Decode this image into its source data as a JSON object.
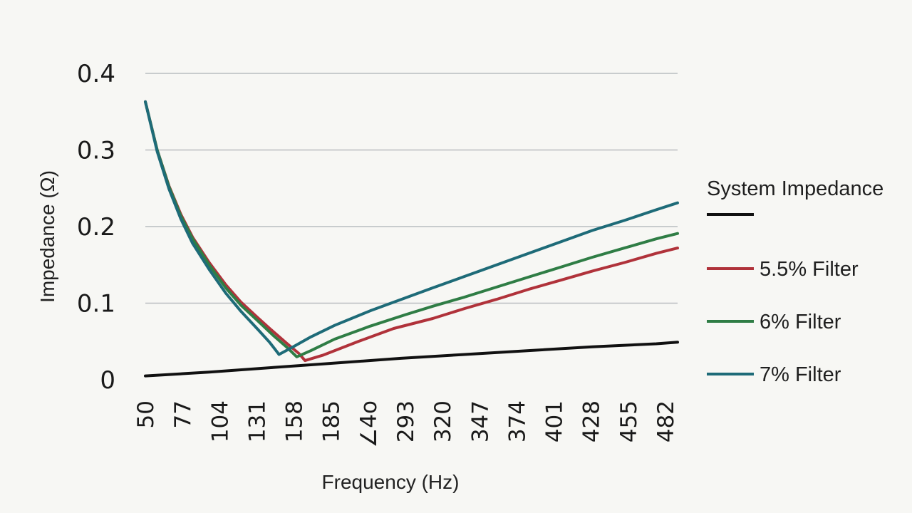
{
  "chart_data": {
    "type": "line",
    "xlabel": "Frequency (Hz)",
    "ylabel": "Impedance  (Ω)",
    "ylim": [
      0,
      0.4
    ],
    "yticks": [
      "0",
      "0.1",
      "0.2",
      "0.3",
      "0.4"
    ],
    "ytick_values": [
      0,
      0.1,
      0.2,
      0.3,
      0.4
    ],
    "xtick_labels": [
      "50",
      "77",
      "104",
      "131",
      "158",
      "185",
      "∠4o",
      "293",
      "320",
      "347",
      "374",
      "401",
      "428",
      "455",
      "482"
    ],
    "grid": true,
    "legend_position": "right",
    "series": [
      {
        "name": "System Impedance",
        "color": "#111111",
        "x": [
          50,
          104,
          158,
          212,
          266,
          320,
          374,
          428,
          482,
          500
        ],
        "y": [
          0.005,
          0.01,
          0.016,
          0.022,
          0.028,
          0.033,
          0.038,
          0.043,
          0.047,
          0.049
        ]
      },
      {
        "name": "5.5% Filter",
        "color": "#b0323a",
        "x": [
          50,
          60,
          70,
          80,
          90,
          104,
          118,
          131,
          145,
          158,
          170,
          180,
          185,
          200,
          230,
          260,
          293,
          320,
          347,
          374,
          401,
          428,
          455,
          482,
          500
        ],
        "y": [
          0.363,
          0.3,
          0.253,
          0.216,
          0.186,
          0.153,
          0.124,
          0.101,
          0.081,
          0.063,
          0.047,
          0.034,
          0.025,
          0.032,
          0.05,
          0.067,
          0.08,
          0.093,
          0.105,
          0.118,
          0.13,
          0.142,
          0.153,
          0.165,
          0.172
        ]
      },
      {
        "name": "6% Filter",
        "color": "#2f7d45",
        "x": [
          50,
          60,
          70,
          80,
          90,
          104,
          118,
          131,
          145,
          158,
          170,
          178,
          190,
          210,
          240,
          270,
          293,
          320,
          347,
          374,
          401,
          428,
          455,
          482,
          500
        ],
        "y": [
          0.363,
          0.3,
          0.252,
          0.214,
          0.184,
          0.15,
          0.12,
          0.097,
          0.077,
          0.058,
          0.042,
          0.03,
          0.038,
          0.053,
          0.07,
          0.085,
          0.096,
          0.108,
          0.121,
          0.134,
          0.147,
          0.16,
          0.172,
          0.184,
          0.191
        ]
      },
      {
        "name": "7% Filter",
        "color": "#1e6b78",
        "x": [
          50,
          60,
          70,
          80,
          90,
          104,
          118,
          131,
          145,
          155,
          163,
          175,
          190,
          210,
          240,
          270,
          293,
          320,
          347,
          374,
          401,
          428,
          455,
          482,
          500
        ],
        "y": [
          0.363,
          0.298,
          0.249,
          0.21,
          0.178,
          0.144,
          0.113,
          0.089,
          0.066,
          0.049,
          0.033,
          0.043,
          0.056,
          0.071,
          0.09,
          0.107,
          0.12,
          0.135,
          0.15,
          0.165,
          0.18,
          0.195,
          0.208,
          0.222,
          0.231
        ]
      }
    ]
  },
  "legend": {
    "items": [
      "System Impedance",
      "5.5% Filter",
      "6% Filter",
      "7% Filter"
    ]
  }
}
